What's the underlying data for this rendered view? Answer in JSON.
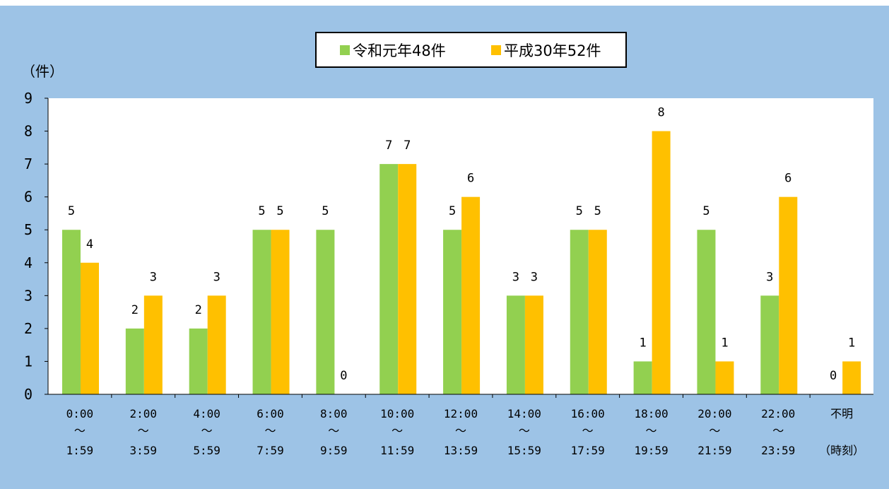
{
  "chart_data": {
    "type": "bar",
    "ylabel": "（件）",
    "ylim": [
      0,
      9
    ],
    "yticks": [
      "0",
      "1",
      "2",
      "3",
      "4",
      "5",
      "6",
      "7",
      "8",
      "9"
    ],
    "categories": [
      [
        "0:00",
        "～",
        "1:59"
      ],
      [
        "2:00",
        "～",
        "3:59"
      ],
      [
        "4:00",
        "～",
        "5:59"
      ],
      [
        "6:00",
        "～",
        "7:59"
      ],
      [
        "8:00",
        "～",
        "9:59"
      ],
      [
        "10:00",
        "～",
        "11:59"
      ],
      [
        "12:00",
        "～",
        "13:59"
      ],
      [
        "14:00",
        "～",
        "15:59"
      ],
      [
        "16:00",
        "～",
        "17:59"
      ],
      [
        "18:00",
        "～",
        "19:59"
      ],
      [
        "20:00",
        "～",
        "21:59"
      ],
      [
        "22:00",
        "～",
        "23:59"
      ],
      [
        "不明",
        "",
        "（時刻）"
      ]
    ],
    "series": [
      {
        "name": "令和元年48件",
        "color": "#92d050",
        "values": [
          5,
          2,
          2,
          5,
          5,
          7,
          5,
          3,
          5,
          1,
          5,
          3,
          0
        ]
      },
      {
        "name": "平成30年52件",
        "color": "#ffc000",
        "values": [
          4,
          3,
          3,
          5,
          0,
          7,
          6,
          3,
          5,
          8,
          1,
          6,
          1
        ]
      }
    ],
    "legend_position": "top-center",
    "grid": false
  }
}
